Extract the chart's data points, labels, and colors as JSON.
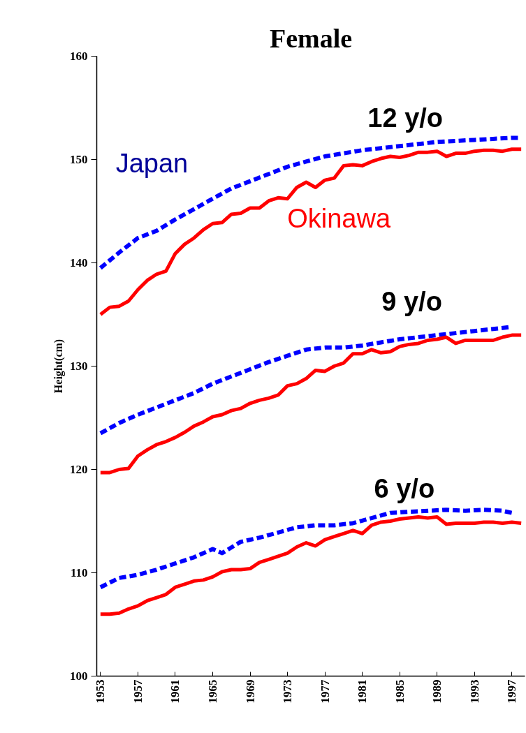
{
  "chart_data": {
    "type": "line",
    "title": "Female",
    "ylabel": "Height(cm)",
    "xlim": [
      1952.6,
      1998.4
    ],
    "xticks": [
      1953,
      1957,
      1961,
      1965,
      1969,
      1973,
      1977,
      1981,
      1985,
      1989,
      1993,
      1997
    ],
    "ylim": [
      100,
      160
    ],
    "yticks": [
      100,
      110,
      120,
      130,
      140,
      150,
      160
    ],
    "grid": false,
    "marker": "none",
    "annotations": [
      "12 y/o",
      "9 y/o",
      "6 y/o"
    ],
    "series": [
      {
        "name": "Japan",
        "color": "#0000ff",
        "line_style": "dashed",
        "x": [
          1953,
          1955,
          1957,
          1959,
          1961,
          1963,
          1965,
          1967,
          1969,
          1971,
          1973,
          1975,
          1977,
          1979,
          1981,
          1983,
          1985,
          1987,
          1989,
          1991,
          1993,
          1995,
          1997,
          1998
        ],
        "values": [
          139.5,
          141.0,
          142.4,
          143.1,
          144.2,
          145.2,
          146.2,
          147.2,
          147.9,
          148.6,
          149.3,
          149.8,
          150.3,
          150.6,
          150.9,
          151.1,
          151.3,
          151.5,
          151.7,
          151.8,
          151.9,
          152.0,
          152.1,
          152.1
        ]
      },
      {
        "name": "Okinawa",
        "color": "#ff0000",
        "line_style": "solid",
        "x": [
          1953,
          1954,
          1955,
          1956,
          1957,
          1958,
          1959,
          1960,
          1961,
          1962,
          1963,
          1964,
          1965,
          1966,
          1967,
          1968,
          1969,
          1970,
          1971,
          1972,
          1973,
          1974,
          1975,
          1976,
          1977,
          1978,
          1979,
          1980,
          1981,
          1982,
          1983,
          1984,
          1985,
          1986,
          1987,
          1988,
          1989,
          1990,
          1991,
          1992,
          1993,
          1994,
          1995,
          1996,
          1997,
          1998
        ],
        "values": [
          135.0,
          135.7,
          135.8,
          136.3,
          137.4,
          138.3,
          138.9,
          139.2,
          140.9,
          141.8,
          142.4,
          143.2,
          143.8,
          143.9,
          144.7,
          144.8,
          145.3,
          145.3,
          146.0,
          146.3,
          146.2,
          147.3,
          147.8,
          147.3,
          148.0,
          148.2,
          149.4,
          149.5,
          149.4,
          149.8,
          150.1,
          150.3,
          150.2,
          150.4,
          150.7,
          150.7,
          150.8,
          150.3,
          150.6,
          150.6,
          150.8,
          150.9,
          150.9,
          150.8,
          151.0,
          151.0
        ]
      },
      {
        "color": "#0000ff",
        "line_style": "dashed",
        "x": [
          1953,
          1955,
          1957,
          1959,
          1961,
          1963,
          1965,
          1967,
          1969,
          1971,
          1973,
          1975,
          1977,
          1979,
          1981,
          1983,
          1985,
          1987,
          1989,
          1991,
          1993,
          1995,
          1997
        ],
        "values": [
          123.5,
          124.5,
          125.3,
          126.0,
          126.7,
          127.4,
          128.3,
          129.0,
          129.7,
          130.4,
          131.0,
          131.6,
          131.8,
          131.8,
          132.0,
          132.3,
          132.6,
          132.8,
          133.0,
          133.2,
          133.4,
          133.6,
          133.8
        ]
      },
      {
        "color": "#ff0000",
        "line_style": "solid",
        "x": [
          1953,
          1954,
          1955,
          1956,
          1957,
          1958,
          1959,
          1960,
          1961,
          1962,
          1963,
          1964,
          1965,
          1966,
          1967,
          1968,
          1969,
          1970,
          1971,
          1972,
          1973,
          1974,
          1975,
          1976,
          1977,
          1978,
          1979,
          1980,
          1981,
          1982,
          1983,
          1984,
          1985,
          1986,
          1987,
          1988,
          1989,
          1990,
          1991,
          1992,
          1993,
          1994,
          1995,
          1996,
          1997,
          1998
        ],
        "values": [
          119.7,
          119.7,
          120.0,
          120.1,
          121.3,
          121.9,
          122.4,
          122.7,
          123.1,
          123.6,
          124.2,
          124.6,
          125.1,
          125.3,
          125.7,
          125.9,
          126.4,
          126.7,
          126.9,
          127.2,
          128.1,
          128.3,
          128.8,
          129.6,
          129.5,
          130.0,
          130.3,
          131.2,
          131.2,
          131.6,
          131.3,
          131.4,
          131.9,
          132.1,
          132.2,
          132.5,
          132.6,
          132.8,
          132.2,
          132.5,
          132.5,
          132.5,
          132.5,
          132.8,
          133.0,
          133.0
        ]
      },
      {
        "color": "#0000ff",
        "line_style": "dashed",
        "x": [
          1953,
          1955,
          1957,
          1959,
          1961,
          1963,
          1965,
          1966,
          1968,
          1970,
          1972,
          1974,
          1976,
          1978,
          1980,
          1982,
          1984,
          1986,
          1988,
          1990,
          1992,
          1994,
          1996,
          1997
        ],
        "values": [
          108.6,
          109.5,
          109.8,
          110.3,
          110.9,
          111.5,
          112.3,
          111.9,
          113.0,
          113.4,
          113.9,
          114.4,
          114.6,
          114.6,
          114.8,
          115.3,
          115.8,
          115.9,
          116.0,
          116.1,
          116.0,
          116.1,
          116.0,
          115.8
        ]
      },
      {
        "color": "#ff0000",
        "line_style": "solid",
        "x": [
          1953,
          1954,
          1955,
          1956,
          1957,
          1958,
          1959,
          1960,
          1961,
          1962,
          1963,
          1964,
          1965,
          1966,
          1967,
          1968,
          1969,
          1970,
          1971,
          1972,
          1973,
          1974,
          1975,
          1976,
          1977,
          1978,
          1979,
          1980,
          1981,
          1982,
          1983,
          1984,
          1985,
          1986,
          1987,
          1988,
          1989,
          1990,
          1991,
          1992,
          1993,
          1994,
          1995,
          1996,
          1997,
          1998
        ],
        "values": [
          106.0,
          106.0,
          106.1,
          106.5,
          106.8,
          107.3,
          107.6,
          107.9,
          108.6,
          108.9,
          109.2,
          109.3,
          109.6,
          110.1,
          110.3,
          110.3,
          110.4,
          111.0,
          111.3,
          111.6,
          111.9,
          112.5,
          112.9,
          112.6,
          113.2,
          113.5,
          113.8,
          114.1,
          113.8,
          114.6,
          114.9,
          115.0,
          115.2,
          115.3,
          115.4,
          115.3,
          115.4,
          114.7,
          114.8,
          114.8,
          114.8,
          114.9,
          114.9,
          114.8,
          114.9,
          114.8
        ]
      }
    ]
  }
}
